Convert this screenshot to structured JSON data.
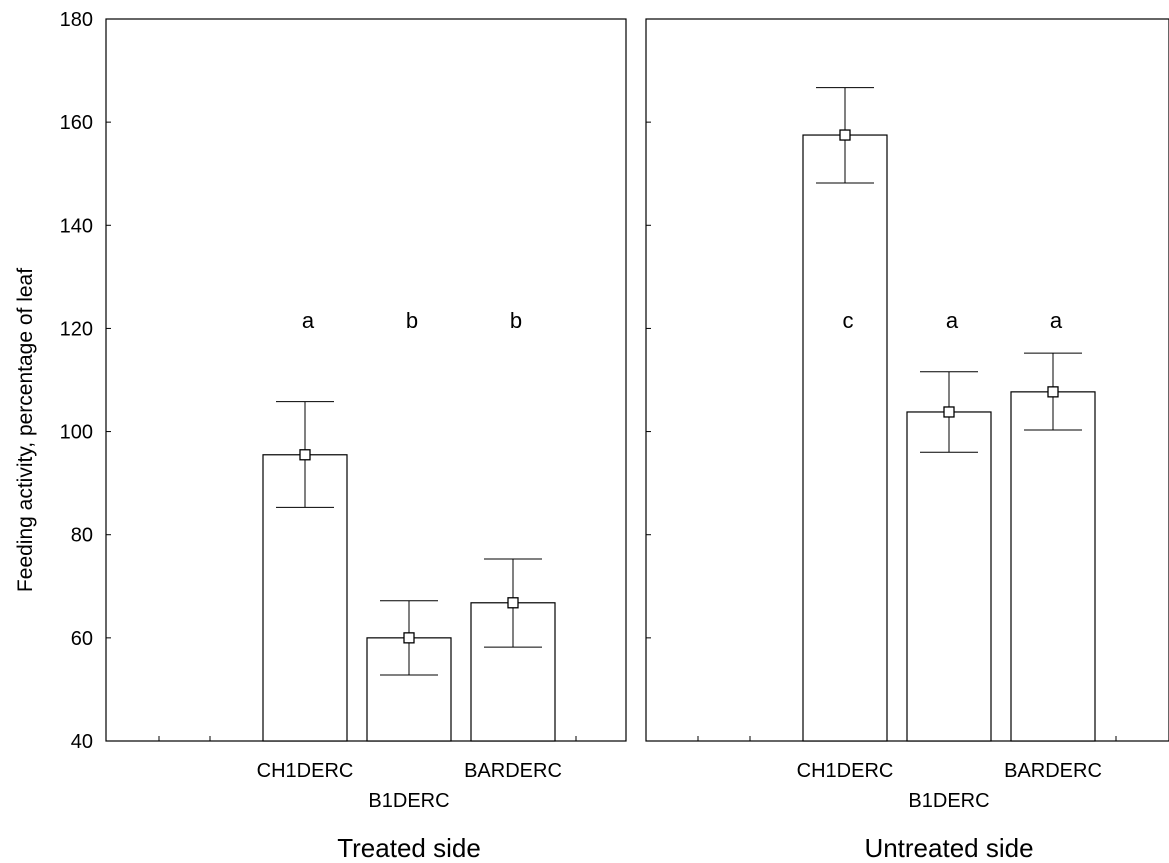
{
  "chart_data": {
    "type": "bar",
    "ylabel": "Feeding activity, percentage of leaf",
    "ylim": [
      40,
      180
    ],
    "yticks": [
      40,
      60,
      80,
      100,
      120,
      140,
      160,
      180
    ],
    "grid": false,
    "legend": "none",
    "error_bars": true,
    "panels": [
      {
        "title": "Treated side",
        "categories": [
          "CH1DERC",
          "B1DERC",
          "BARDERC"
        ],
        "values": [
          95.5,
          60.0,
          66.8
        ],
        "error_low": [
          85.3,
          52.8,
          58.2
        ],
        "error_high": [
          105.8,
          67.2,
          75.3
        ],
        "letters": [
          "a",
          "b",
          "b"
        ]
      },
      {
        "title": "Untreated side",
        "categories": [
          "CH1DERC",
          "B1DERC",
          "BARDERC"
        ],
        "values": [
          157.5,
          103.8,
          107.7
        ],
        "error_low": [
          148.2,
          96.0,
          100.3
        ],
        "error_high": [
          166.7,
          111.6,
          115.2
        ],
        "letters": [
          "c",
          "a",
          "a"
        ]
      }
    ]
  }
}
